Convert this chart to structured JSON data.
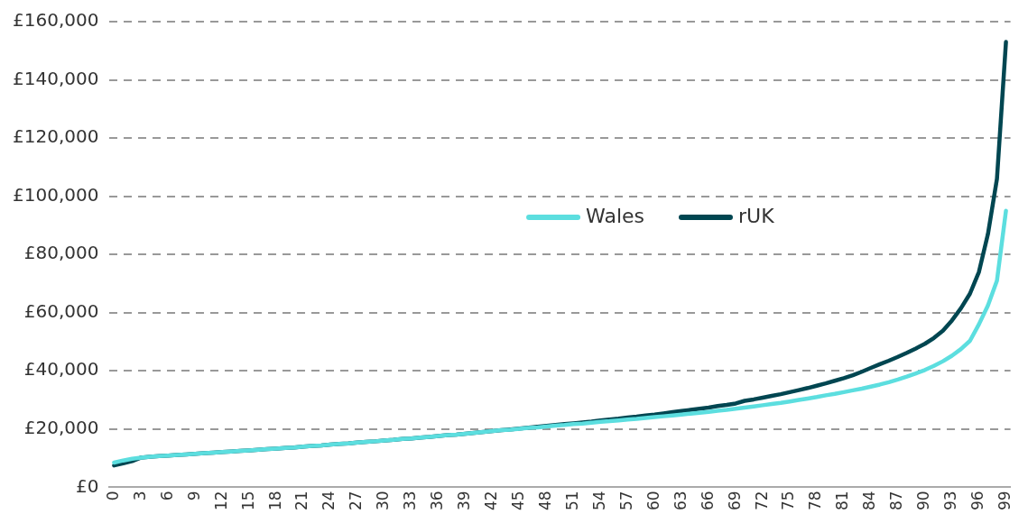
{
  "chart_data": {
    "type": "line",
    "categories": [
      "0",
      null,
      null,
      "3",
      null,
      null,
      "6",
      null,
      null,
      "9",
      null,
      null,
      "12",
      null,
      null,
      "15",
      null,
      null,
      "18",
      null,
      null,
      "21",
      null,
      null,
      "24",
      null,
      null,
      "27",
      null,
      null,
      "30",
      null,
      null,
      "33",
      null,
      null,
      "36",
      null,
      null,
      "39",
      null,
      null,
      "42",
      null,
      null,
      "45",
      null,
      null,
      "48",
      null,
      null,
      "51",
      null,
      null,
      "54",
      null,
      null,
      "57",
      null,
      null,
      "60",
      null,
      null,
      "63",
      null,
      null,
      "66",
      null,
      null,
      "69",
      null,
      null,
      "72",
      null,
      null,
      "75",
      null,
      null,
      "78",
      null,
      null,
      "81",
      null,
      null,
      "84",
      null,
      null,
      "87",
      null,
      null,
      "90",
      null,
      null,
      "93",
      null,
      null,
      "96",
      null,
      null,
      "99"
    ],
    "series": [
      {
        "name": "Wales",
        "color": "#5cdedf",
        "values": [
          8500,
          9200,
          9800,
          10200,
          10500,
          10700,
          10900,
          11100,
          11300,
          11500,
          11700,
          11900,
          12100,
          12300,
          12500,
          12700,
          12900,
          13100,
          13300,
          13500,
          13700,
          14000,
          14200,
          14400,
          14700,
          14900,
          15100,
          15400,
          15600,
          15800,
          16100,
          16300,
          16600,
          16800,
          17100,
          17300,
          17600,
          17900,
          18100,
          18400,
          18700,
          19000,
          19300,
          19600,
          19800,
          20100,
          20400,
          20600,
          20900,
          21200,
          21400,
          21700,
          21900,
          22200,
          22500,
          22700,
          23000,
          23300,
          23500,
          23800,
          24100,
          24400,
          24700,
          25000,
          25300,
          25600,
          25900,
          26300,
          26600,
          27000,
          27400,
          27800,
          28200,
          28600,
          29000,
          29500,
          30000,
          30500,
          31000,
          31600,
          32100,
          32700,
          33300,
          33900,
          34600,
          35300,
          36100,
          37000,
          38000,
          39100,
          40300,
          41700,
          43300,
          45200,
          47500,
          50300,
          56000,
          62500,
          71000,
          95000
        ]
      },
      {
        "name": "rUK",
        "color": "#004651",
        "values": [
          7500,
          8200,
          9000,
          10200,
          10500,
          10700,
          10900,
          11100,
          11300,
          11500,
          11700,
          11900,
          12100,
          12300,
          12500,
          12700,
          12900,
          13100,
          13300,
          13500,
          13700,
          14000,
          14200,
          14400,
          14700,
          14900,
          15100,
          15400,
          15600,
          15800,
          16100,
          16300,
          16600,
          16800,
          17100,
          17300,
          17600,
          17900,
          18100,
          18400,
          18700,
          19000,
          19300,
          19600,
          19900,
          20200,
          20500,
          20800,
          21100,
          21400,
          21700,
          22000,
          22300,
          22600,
          23000,
          23300,
          23600,
          24000,
          24300,
          24700,
          25000,
          25400,
          25800,
          26200,
          26600,
          27000,
          27400,
          27900,
          28300,
          28800,
          29700,
          30200,
          30800,
          31400,
          32000,
          32700,
          33400,
          34100,
          34900,
          35700,
          36600,
          37500,
          38500,
          39700,
          41000,
          42300,
          43500,
          44800,
          46200,
          47700,
          49300,
          51300,
          53800,
          57300,
          61500,
          66500,
          74000,
          87000,
          106000,
          153000
        ]
      }
    ],
    "ylim": [
      0,
      160000
    ],
    "yticks": [
      {
        "value": 0,
        "label": "£0"
      },
      {
        "value": 20000,
        "label": "£20,000"
      },
      {
        "value": 40000,
        "label": "£40,000"
      },
      {
        "value": 60000,
        "label": "£60,000"
      },
      {
        "value": 80000,
        "label": "£80,000"
      },
      {
        "value": 100000,
        "label": "£100,000"
      },
      {
        "value": 120000,
        "label": "£120,000"
      },
      {
        "value": 140000,
        "label": "£140,000"
      },
      {
        "value": 160000,
        "label": "£160,000"
      }
    ],
    "grid": "y",
    "legend": "center",
    "marker": "none",
    "line_style": "solid"
  }
}
